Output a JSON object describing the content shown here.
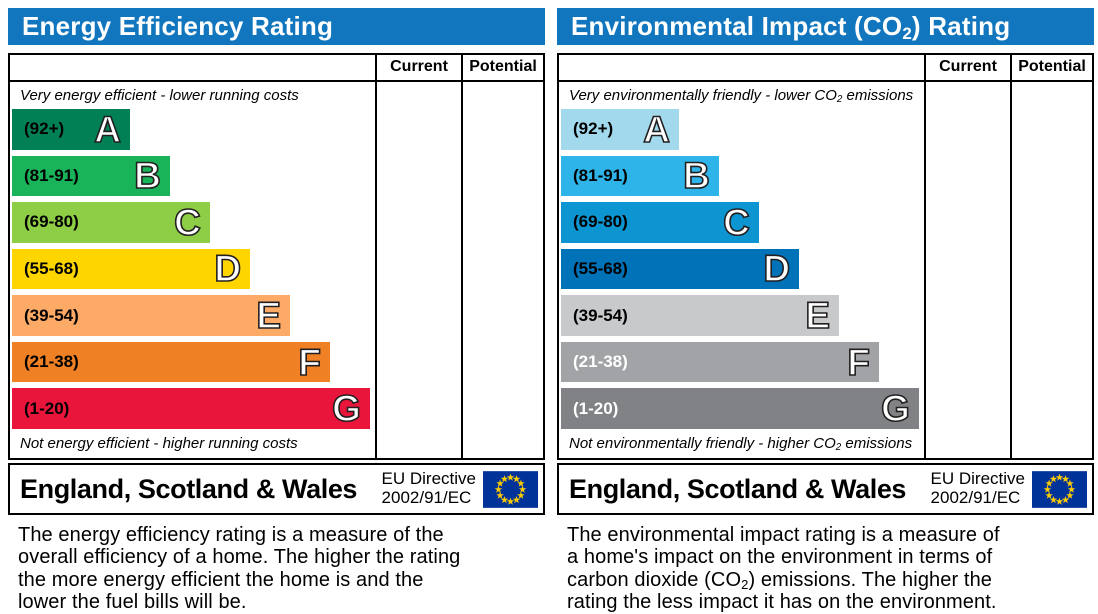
{
  "colors": {
    "header_bg": "#1176bd",
    "flag_bg": "#003399",
    "flag_star": "#ffcc00"
  },
  "panels": {
    "left": {
      "title": {
        "pre": "Energy Efficiency Rating",
        "sub": "",
        "post": ""
      },
      "columns": {
        "current": "Current",
        "potential": "Potential"
      },
      "top_caption": {
        "pre": "Very energy efficient - lower running costs",
        "sub": "",
        "post": ""
      },
      "bottom_caption": {
        "pre": "Not energy efficient - higher running costs",
        "sub": "",
        "post": ""
      },
      "bands": [
        {
          "range": "(92+)",
          "letter": "A",
          "color": "#008054",
          "width_pct": 32.5,
          "label_color": "#000000"
        },
        {
          "range": "(81-91)",
          "letter": "B",
          "color": "#19b459",
          "width_pct": 43.5,
          "label_color": "#000000"
        },
        {
          "range": "(69-80)",
          "letter": "C",
          "color": "#8dce46",
          "width_pct": 54.5,
          "label_color": "#000000"
        },
        {
          "range": "(55-68)",
          "letter": "D",
          "color": "#ffd500",
          "width_pct": 65.6,
          "label_color": "#000000"
        },
        {
          "range": "(39-54)",
          "letter": "E",
          "color": "#fcaa65",
          "width_pct": 76.6,
          "label_color": "#000000"
        },
        {
          "range": "(21-38)",
          "letter": "F",
          "color": "#ef8023",
          "width_pct": 87.6,
          "label_color": "#000000"
        },
        {
          "range": "(1-20)",
          "letter": "G",
          "color": "#e9153b",
          "width_pct": 98.6,
          "label_color": "#000000"
        }
      ],
      "footer": {
        "region": "England, Scotland & Wales",
        "directive_line1": "EU Directive",
        "directive_line2": "2002/91/EC"
      },
      "description": {
        "pre": "The energy efficiency rating is a measure of the\noverall efficiency of a home. The higher the rating\nthe more energy efficient the home is and the\nlower the fuel bills will be.",
        "sub": "",
        "post": ""
      }
    },
    "right": {
      "title": {
        "pre": "Environmental Impact (CO",
        "sub": "2",
        "post": ") Rating"
      },
      "columns": {
        "current": "Current",
        "potential": "Potential"
      },
      "top_caption": {
        "pre": "Very environmentally friendly - lower CO",
        "sub": "2",
        "post": " emissions"
      },
      "bottom_caption": {
        "pre": "Not environmentally friendly - higher CO",
        "sub": "2",
        "post": " emissions"
      },
      "bands": [
        {
          "range": "(92+)",
          "letter": "A",
          "color": "#a2d9ec",
          "width_pct": 32.5,
          "label_color": "#000000"
        },
        {
          "range": "(81-91)",
          "letter": "B",
          "color": "#2eb4e9",
          "width_pct": 43.5,
          "label_color": "#000000"
        },
        {
          "range": "(69-80)",
          "letter": "C",
          "color": "#0d95d1",
          "width_pct": 54.5,
          "label_color": "#000000"
        },
        {
          "range": "(55-68)",
          "letter": "D",
          "color": "#0072b8",
          "width_pct": 65.6,
          "label_color": "#000000"
        },
        {
          "range": "(39-54)",
          "letter": "E",
          "color": "#c8c9ca",
          "width_pct": 76.6,
          "label_color": "#000000"
        },
        {
          "range": "(21-38)",
          "letter": "F",
          "color": "#a1a3a6",
          "width_pct": 87.6,
          "label_color": "#ffffff"
        },
        {
          "range": "(1-20)",
          "letter": "G",
          "color": "#808285",
          "width_pct": 98.6,
          "label_color": "#ffffff"
        }
      ],
      "footer": {
        "region": "England, Scotland & Wales",
        "directive_line1": "EU Directive",
        "directive_line2": "2002/91/EC"
      },
      "description": {
        "pre": "The environmental impact rating is a measure of\na home's impact on the environment in terms of\ncarbon dioxide (CO",
        "sub": "2",
        "post": ") emissions. The higher the\nrating the less impact it has on the environment."
      }
    }
  },
  "chart_data": [
    {
      "type": "bar",
      "title": "Energy Efficiency Rating",
      "categories": [
        "A",
        "B",
        "C",
        "D",
        "E",
        "F",
        "G"
      ],
      "band_ranges": [
        "92+",
        "81-91",
        "69-80",
        "55-68",
        "39-54",
        "21-38",
        "1-20"
      ],
      "bar_lengths_pct": [
        32.5,
        43.5,
        54.5,
        65.6,
        76.6,
        87.6,
        98.6
      ],
      "bar_colors": [
        "#008054",
        "#19b459",
        "#8dce46",
        "#ffd500",
        "#fcaa65",
        "#ef8023",
        "#e9153b"
      ],
      "columns": [
        "Current",
        "Potential"
      ],
      "current_value": null,
      "potential_value": null,
      "top_note": "Very energy efficient - lower running costs",
      "bottom_note": "Not energy efficient - higher running costs",
      "region_label": "England, Scotland & Wales",
      "directive_label": "EU Directive 2002/91/EC",
      "legend_position": "none",
      "grid": false
    },
    {
      "type": "bar",
      "title": "Environmental Impact (CO2) Rating",
      "categories": [
        "A",
        "B",
        "C",
        "D",
        "E",
        "F",
        "G"
      ],
      "band_ranges": [
        "92+",
        "81-91",
        "69-80",
        "55-68",
        "39-54",
        "21-38",
        "1-20"
      ],
      "bar_lengths_pct": [
        32.5,
        43.5,
        54.5,
        65.6,
        76.6,
        87.6,
        98.6
      ],
      "bar_colors": [
        "#a2d9ec",
        "#2eb4e9",
        "#0d95d1",
        "#0072b8",
        "#c8c9ca",
        "#a1a3a6",
        "#808285"
      ],
      "columns": [
        "Current",
        "Potential"
      ],
      "current_value": null,
      "potential_value": null,
      "top_note": "Very environmentally friendly - lower CO2 emissions",
      "bottom_note": "Not environmentally friendly - higher CO2 emissions",
      "region_label": "England, Scotland & Wales",
      "directive_label": "EU Directive 2002/91/EC",
      "legend_position": "none",
      "grid": false
    }
  ]
}
